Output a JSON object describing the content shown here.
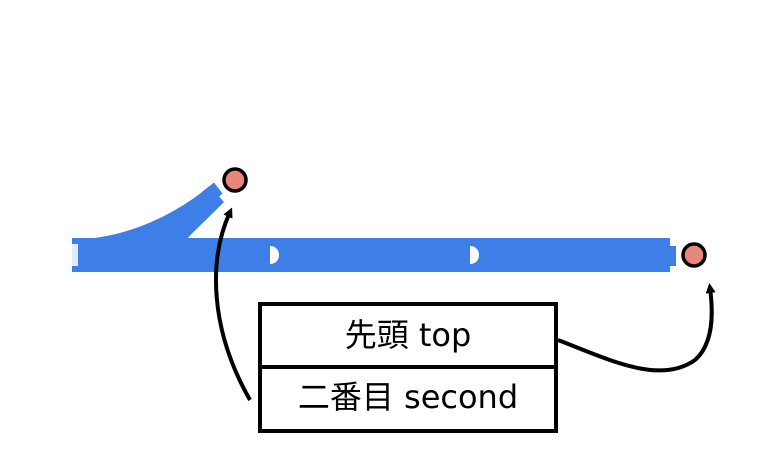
{
  "stack": {
    "top_label": "先頭 top",
    "second_label": "二番目 second"
  },
  "colors": {
    "track": "#3d7fe6",
    "track_notch": "#ffffff",
    "marker_fill": "#e8877a",
    "marker_stroke": "#000000",
    "box_stroke": "#000000",
    "arrow": "#000000"
  }
}
